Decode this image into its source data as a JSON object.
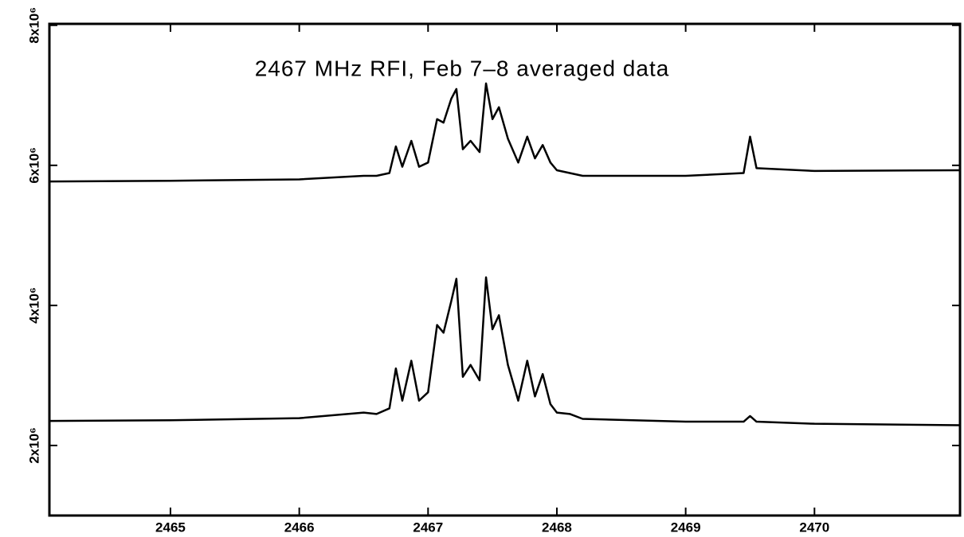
{
  "chart_data": {
    "type": "line",
    "title": "2467 MHz RFI, Feb 7–8 averaged data",
    "x": [
      2464.06,
      2465.0,
      2466.0,
      2466.5,
      2466.6,
      2466.7,
      2466.75,
      2466.8,
      2466.87,
      2466.93,
      2467.0,
      2467.07,
      2467.12,
      2467.18,
      2467.22,
      2467.27,
      2467.33,
      2467.4,
      2467.45,
      2467.5,
      2467.55,
      2467.62,
      2467.7,
      2467.77,
      2467.83,
      2467.89,
      2467.95,
      2468.0,
      2468.1,
      2468.2,
      2469.0,
      2469.45,
      2469.5,
      2469.55,
      2470.0,
      2471.13
    ],
    "series": [
      {
        "color": "#000000",
        "values": [
          5770000,
          5780000,
          5800000,
          5850000,
          5850000,
          5890000,
          6270000,
          5980000,
          6350000,
          5980000,
          6040000,
          6660000,
          6610000,
          6950000,
          7090000,
          6230000,
          6350000,
          6190000,
          7170000,
          6660000,
          6830000,
          6380000,
          6040000,
          6410000,
          6100000,
          6290000,
          6040000,
          5930000,
          5890000,
          5850000,
          5850000,
          5890000,
          6410000,
          5960000,
          5920000,
          5930000
        ]
      },
      {
        "color": "#000000",
        "values": [
          2350000,
          2360000,
          2390000,
          2470000,
          2450000,
          2530000,
          3100000,
          2640000,
          3210000,
          2640000,
          2760000,
          3720000,
          3610000,
          4060000,
          4380000,
          2980000,
          3150000,
          2930000,
          4400000,
          3660000,
          3860000,
          3150000,
          2640000,
          3210000,
          2700000,
          3020000,
          2590000,
          2470000,
          2450000,
          2380000,
          2340000,
          2340000,
          2420000,
          2340000,
          2310000,
          2290000
        ]
      }
    ],
    "xlim": [
      2464.06,
      2471.13
    ],
    "ylim": [
      1000000,
      8020000
    ],
    "xticks": [
      2465,
      2466,
      2467,
      2468,
      2469,
      2470
    ],
    "yticks": [
      {
        "value": 2000000,
        "label": "2x10⁶"
      },
      {
        "value": 4000000,
        "label": "4x10⁶"
      },
      {
        "value": 6000000,
        "label": "6x10⁶"
      },
      {
        "value": 8000000,
        "label": "8x10⁶"
      }
    ]
  }
}
